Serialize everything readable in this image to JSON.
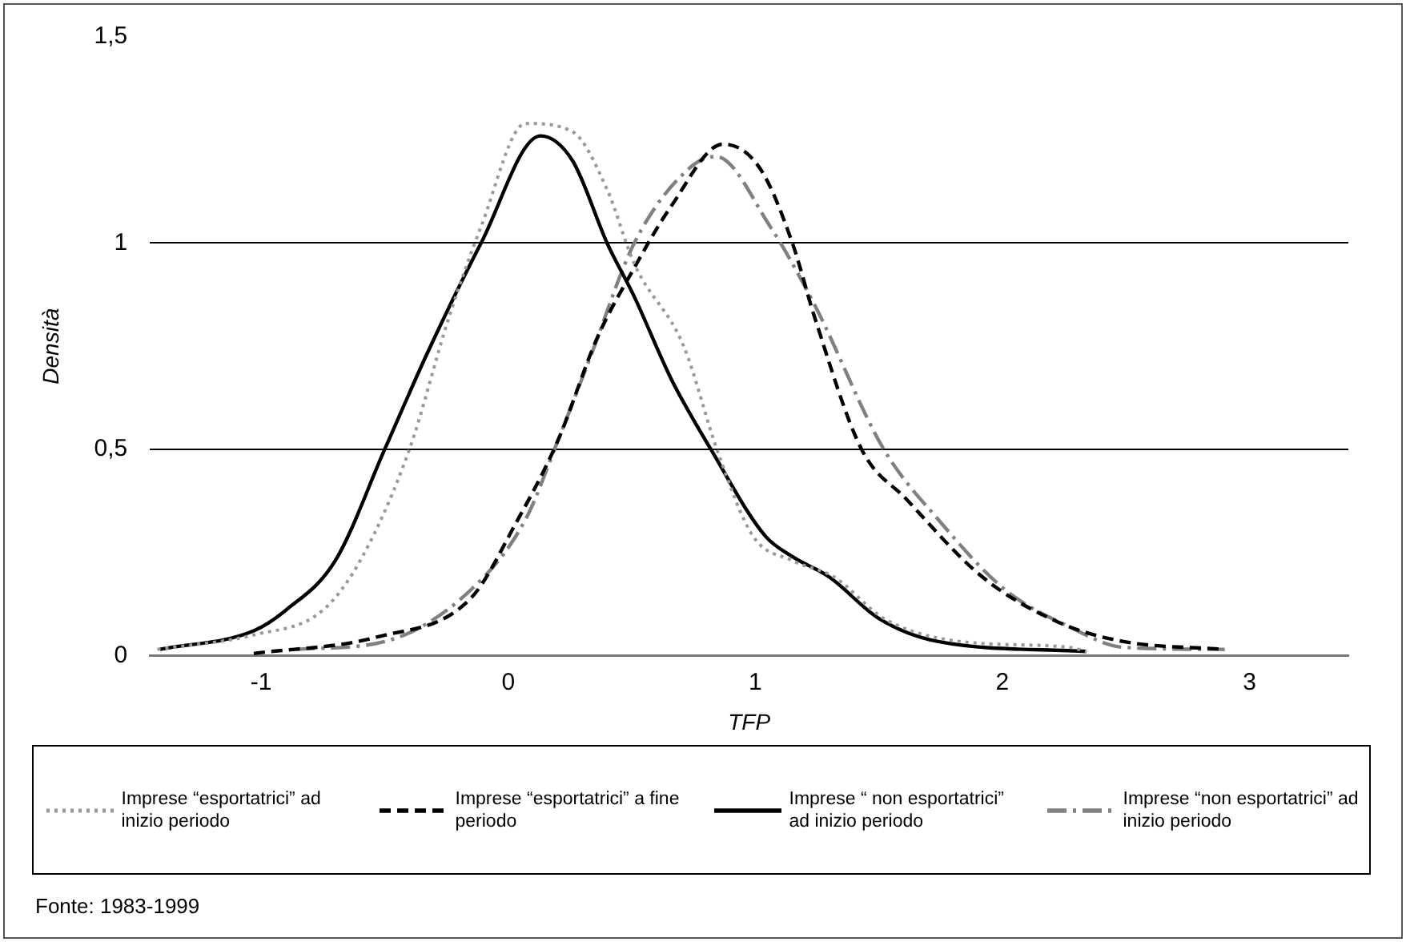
{
  "chart_data": {
    "type": "line",
    "xlabel": "TFP",
    "ylabel": "Densità",
    "xlim": [
      -1.45,
      3.4
    ],
    "xticks": [
      -1,
      0,
      1,
      2,
      3
    ],
    "ylim": [
      0,
      1.5
    ],
    "yticks": [
      0,
      {
        "value": 0.5,
        "label": "0,5"
      },
      1,
      {
        "value": 1.5,
        "label": "1,5"
      }
    ],
    "grid": "y",
    "legend": "bottom",
    "marker": "none",
    "series": [
      {
        "name": "Imprese “esportatrici” ad inizio periodo",
        "color": "#999999",
        "line_style": "dotted",
        "x": [
          -1.42,
          -1.03,
          -0.75,
          -0.59,
          -0.4,
          -0.24,
          -0.11,
          0.07,
          0.26,
          0.4,
          0.51,
          0.71,
          0.85,
          0.99,
          1.15,
          1.32,
          1.52,
          1.83,
          2.27,
          2.34
        ],
        "values": [
          0.015,
          0.05,
          0.11,
          0.24,
          0.5,
          0.82,
          1.04,
          1.29,
          1.27,
          1.13,
          0.95,
          0.75,
          0.49,
          0.29,
          0.23,
          0.19,
          0.09,
          0.034,
          0.02,
          0.01
        ]
      },
      {
        "name": "Imprese “esportatrici” a fine periodo",
        "color": "#000000",
        "line_style": "dashed",
        "x": [
          -1.03,
          -0.53,
          -0.15,
          0.03,
          0.2,
          0.36,
          0.51,
          0.66,
          0.87,
          1.02,
          1.15,
          1.24,
          1.43,
          1.61,
          1.92,
          2.23,
          2.49,
          2.9
        ],
        "values": [
          0.005,
          0.045,
          0.14,
          0.32,
          0.52,
          0.77,
          0.94,
          1.09,
          1.24,
          1.18,
          1.0,
          0.82,
          0.5,
          0.38,
          0.19,
          0.08,
          0.034,
          0.015
        ]
      },
      {
        "name": "Imprese “ non esportatrici” ad inizio periodo",
        "color": "#000000",
        "line_style": "solid",
        "x": [
          -1.41,
          -1.03,
          -0.9,
          -0.7,
          -0.5,
          -0.33,
          -0.11,
          0.13,
          0.26,
          0.4,
          0.51,
          0.66,
          0.82,
          1.04,
          1.15,
          1.3,
          1.5,
          1.74,
          2.34
        ],
        "values": [
          0.015,
          0.06,
          0.11,
          0.23,
          0.5,
          0.73,
          1.0,
          1.26,
          1.2,
          1.0,
          0.87,
          0.67,
          0.5,
          0.29,
          0.24,
          0.19,
          0.09,
          0.034,
          0.01
        ]
      },
      {
        "name": "Imprese “non esportatrici” ad inizio periodo",
        "color": "#808080",
        "line_style": "dashdot",
        "x": [
          -0.86,
          -0.5,
          -0.15,
          0.07,
          0.2,
          0.33,
          0.51,
          0.73,
          0.84,
          1.06,
          1.24,
          1.52,
          1.74,
          2.01,
          2.27,
          2.49,
          2.9
        ],
        "values": [
          0.015,
          0.034,
          0.16,
          0.33,
          0.52,
          0.72,
          1.0,
          1.18,
          1.21,
          1.04,
          0.85,
          0.5,
          0.33,
          0.16,
          0.07,
          0.02,
          0.015
        ]
      }
    ],
    "annotations": [
      "Fonte: 1983-1999"
    ]
  }
}
